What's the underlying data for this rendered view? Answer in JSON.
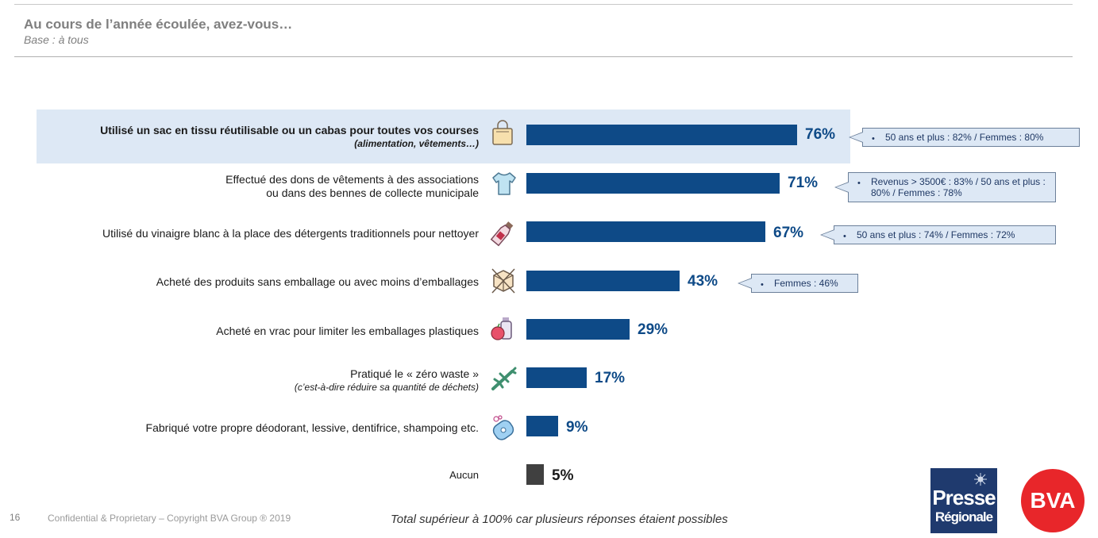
{
  "header": {
    "title": "Au cours de l’année écoulée, avez-vous…",
    "subtitle": "Base : à tous"
  },
  "items": [
    {
      "line1": "Utilisé un sac en tissu réutilisable ou un cabas pour toutes vos courses",
      "line2": "(alimentation, vêtements…)",
      "pct_label": "76%",
      "icon": "shopping-bag-icon",
      "callout": "50 ans et plus : 82% / Femmes : 80%"
    },
    {
      "line1": "Effectué des dons de vêtements à des associations",
      "line2": "ou dans des bennes de collecte municipale",
      "pct_label": "71%",
      "icon": "tshirt-icon",
      "callout": "Revenus > 3500€ : 83% / 50 ans et plus : 80% / Femmes : 78%"
    },
    {
      "line1": "Utilisé du vinaigre blanc à la place des détergents traditionnels pour nettoyer",
      "line2": "",
      "pct_label": "67%",
      "icon": "vinegar-bottle-icon",
      "callout": "50 ans et plus : 74% / Femmes : 72%"
    },
    {
      "line1": "Acheté des produits sans emballage ou avec moins d’emballages",
      "line2": "",
      "pct_label": "43%",
      "icon": "crossed-box-icon",
      "callout": "Femmes : 46%"
    },
    {
      "line1": "Acheté en vrac pour limiter les emballages plastiques",
      "line2": "",
      "pct_label": "29%",
      "icon": "bulk-food-icon",
      "callout": ""
    },
    {
      "line1": "Pratiqué le « zéro waste »",
      "line2": "(c’est-à-dire réduire sa quantité de déchets)",
      "pct_label": "17%",
      "icon": "fish-bone-icon",
      "callout": ""
    },
    {
      "line1": "Fabriqué votre propre déodorant, lessive, dentifrice, shampoing etc.",
      "line2": "",
      "pct_label": "9%",
      "icon": "soap-icon",
      "callout": ""
    },
    {
      "line1": "Aucun",
      "line2": "",
      "pct_label": "5%",
      "icon": "",
      "callout": ""
    }
  ],
  "chart_data": {
    "type": "bar",
    "orientation": "horizontal",
    "categories": [
      "Utilisé un sac en tissu réutilisable ou un cabas pour toutes vos courses (alimentation, vêtements…)",
      "Effectué des dons de vêtements à des associations ou dans des bennes de collecte municipale",
      "Utilisé du vinaigre blanc à la place des détergents traditionnels pour nettoyer",
      "Acheté des produits sans emballage ou avec moins d’emballages",
      "Acheté en vrac pour limiter les emballages plastiques",
      "Pratiqué le « zéro waste » (c’est-à-dire réduire sa quantité de déchets)",
      "Fabriqué votre propre déodorant, lessive, dentifrice, shampoing etc.",
      "Aucun"
    ],
    "values": [
      76,
      71,
      67,
      43,
      29,
      17,
      9,
      5
    ],
    "unit": "%",
    "xlim": [
      0,
      100
    ],
    "colors": {
      "bar": "#0e4a87",
      "bar_none": "#404040",
      "highlight": "#dde8f5"
    }
  },
  "footer": {
    "page_number": "16",
    "copyright": "Confidential & Proprietary – Copyright BVA Group ®  2019",
    "note": "Total supérieur à 100% car plusieurs réponses étaient possibles"
  },
  "logos": {
    "presse_line1": "Presse",
    "presse_line2": "Régionale",
    "bva": "BVA"
  }
}
